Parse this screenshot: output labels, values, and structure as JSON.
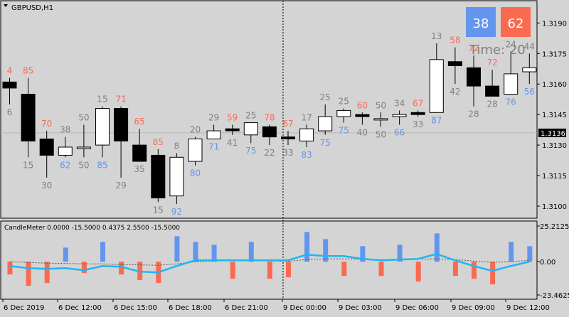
{
  "symbol_title": "GBPUSD,H1",
  "time_label": "Time: 20",
  "buyers_count": "38",
  "sellers_count": "62",
  "current_price": "1.3136",
  "indicator_title": "CandleMeter 0.0000 -15.5000 0.4375 2.5500 -15.5000",
  "colors": {
    "bull_number": "#6495ed",
    "bear_number": "#fa6a50",
    "neutral_number": "#808080",
    "histogram_up": "#6495ed",
    "histogram_down": "#fa6a50",
    "signal_line": "#1fb6f0",
    "background": "#d4d4d4"
  },
  "price_axis": {
    "min": 1.31,
    "max": 1.3195,
    "ticks": [
      "1.3100",
      "1.3115",
      "1.3130",
      "1.3145",
      "1.3160",
      "1.3175",
      "1.3190"
    ]
  },
  "indicator_axis": {
    "min": -23.4625,
    "max": 25.2125,
    "ticks": [
      "25.2125",
      "0.00",
      "-23.4625"
    ]
  },
  "time_labels": [
    "6 Dec 2019",
    "6 Dec 12:00",
    "6 Dec 15:00",
    "6 Dec 18:00",
    "6 Dec 21:00",
    "9 Dec 00:00",
    "9 Dec 03:00",
    "9 Dec 06:00",
    "9 Dec 09:00",
    "9 Dec 12:00"
  ],
  "chart_data": {
    "type": "candlestick",
    "candles": [
      {
        "o": 1.3161,
        "h": 1.3163,
        "l": 1.315,
        "c": 1.3158,
        "top": "4",
        "top_c": "bear",
        "bot": "6",
        "bot_c": "neutral"
      },
      {
        "o": 1.3155,
        "h": 1.3163,
        "l": 1.3124,
        "c": 1.3132,
        "top": "85",
        "top_c": "bear",
        "bot": "15",
        "bot_c": "neutral"
      },
      {
        "o": 1.3133,
        "h": 1.3137,
        "l": 1.3114,
        "c": 1.3125,
        "top": "70",
        "top_c": "bear",
        "bot": "30",
        "bot_c": "neutral"
      },
      {
        "o": 1.3125,
        "h": 1.3134,
        "l": 1.3124,
        "c": 1.3129,
        "top": "38",
        "top_c": "neutral",
        "bot": "62",
        "bot_c": "bull"
      },
      {
        "o": 1.3129,
        "h": 1.314,
        "l": 1.3124,
        "c": 1.3129,
        "top": "50",
        "top_c": "neutral",
        "bot": "50",
        "bot_c": "neutral"
      },
      {
        "o": 1.313,
        "h": 1.3149,
        "l": 1.3124,
        "c": 1.3148,
        "top": "15",
        "top_c": "neutral",
        "bot": "85",
        "bot_c": "bull"
      },
      {
        "o": 1.3148,
        "h": 1.3149,
        "l": 1.3114,
        "c": 1.3132,
        "top": "71",
        "top_c": "bear",
        "bot": "29",
        "bot_c": "neutral"
      },
      {
        "o": 1.313,
        "h": 1.3138,
        "l": 1.3122,
        "c": 1.3122,
        "top": "65",
        "top_c": "bear",
        "bot": "35",
        "bot_c": "neutral"
      },
      {
        "o": 1.3125,
        "h": 1.3128,
        "l": 1.3102,
        "c": 1.3104,
        "top": "85",
        "top_c": "bear",
        "bot": "15",
        "bot_c": "neutral"
      },
      {
        "o": 1.3105,
        "h": 1.3126,
        "l": 1.3101,
        "c": 1.3124,
        "top": "8",
        "top_c": "neutral",
        "bot": "92",
        "bot_c": "bull"
      },
      {
        "o": 1.3122,
        "h": 1.3134,
        "l": 1.312,
        "c": 1.3133,
        "top": "20",
        "top_c": "neutral",
        "bot": "80",
        "bot_c": "bull"
      },
      {
        "o": 1.3133,
        "h": 1.314,
        "l": 1.3133,
        "c": 1.3137,
        "top": "29",
        "top_c": "neutral",
        "bot": "71",
        "bot_c": "bull"
      },
      {
        "o": 1.3138,
        "h": 1.314,
        "l": 1.3135,
        "c": 1.3137,
        "top": "59",
        "top_c": "bear",
        "bot": "41",
        "bot_c": "neutral"
      },
      {
        "o": 1.3135,
        "h": 1.3141,
        "l": 1.3131,
        "c": 1.3141,
        "top": "25",
        "top_c": "neutral",
        "bot": "75",
        "bot_c": "bull"
      },
      {
        "o": 1.3139,
        "h": 1.314,
        "l": 1.313,
        "c": 1.3134,
        "top": "78",
        "top_c": "bear",
        "bot": "22",
        "bot_c": "neutral"
      },
      {
        "o": 1.3134,
        "h": 1.3137,
        "l": 1.313,
        "c": 1.3133,
        "top": "67",
        "top_c": "bear",
        "bot": "33",
        "bot_c": "neutral"
      },
      {
        "o": 1.3132,
        "h": 1.314,
        "l": 1.3129,
        "c": 1.3138,
        "top": "17",
        "top_c": "neutral",
        "bot": "83",
        "bot_c": "bull"
      },
      {
        "o": 1.3137,
        "h": 1.315,
        "l": 1.3135,
        "c": 1.3144,
        "top": "25",
        "top_c": "neutral",
        "bot": "75",
        "bot_c": "bull"
      },
      {
        "o": 1.3144,
        "h": 1.3148,
        "l": 1.3141,
        "c": 1.3147,
        "top": "25",
        "top_c": "neutral",
        "bot": "75",
        "bot_c": "bull"
      },
      {
        "o": 1.3145,
        "h": 1.3146,
        "l": 1.314,
        "c": 1.3144,
        "top": "60",
        "top_c": "bear",
        "bot": "40",
        "bot_c": "neutral"
      },
      {
        "o": 1.3143,
        "h": 1.3146,
        "l": 1.3139,
        "c": 1.3143,
        "top": "50",
        "top_c": "neutral",
        "bot": "50",
        "bot_c": "neutral"
      },
      {
        "o": 1.3144,
        "h": 1.3147,
        "l": 1.314,
        "c": 1.3145,
        "top": "34",
        "top_c": "neutral",
        "bot": "66",
        "bot_c": "bull"
      },
      {
        "o": 1.3146,
        "h": 1.3147,
        "l": 1.3144,
        "c": 1.3145,
        "top": "67",
        "top_c": "bear",
        "bot": "33",
        "bot_c": "neutral"
      },
      {
        "o": 1.3146,
        "h": 1.318,
        "l": 1.3146,
        "c": 1.3172,
        "top": "13",
        "top_c": "neutral",
        "bot": "87",
        "bot_c": "bull"
      },
      {
        "o": 1.3171,
        "h": 1.3178,
        "l": 1.316,
        "c": 1.3169,
        "top": "58",
        "top_c": "bear",
        "bot": "42",
        "bot_c": "neutral"
      },
      {
        "o": 1.3168,
        "h": 1.3174,
        "l": 1.3149,
        "c": 1.3159,
        "top": "72",
        "top_c": "bear",
        "bot": "28",
        "bot_c": "neutral"
      },
      {
        "o": 1.3159,
        "h": 1.3167,
        "l": 1.3154,
        "c": 1.3154,
        "top": "72",
        "top_c": "bear",
        "bot": "28",
        "bot_c": "neutral"
      },
      {
        "o": 1.3155,
        "h": 1.3176,
        "l": 1.3155,
        "c": 1.3165,
        "top": "24",
        "top_c": "neutral",
        "bot": "76",
        "bot_c": "bull"
      },
      {
        "o": 1.3166,
        "h": 1.3175,
        "l": 1.316,
        "c": 1.3168,
        "top": "44",
        "top_c": "neutral",
        "bot": "56",
        "bot_c": "bull"
      }
    ],
    "histogram": [
      -9,
      -17,
      -15,
      10,
      -8,
      14,
      -9,
      -13,
      -15,
      18,
      14,
      12,
      -12,
      14,
      -12,
      -11,
      21,
      16,
      -10,
      11,
      -10,
      12,
      -14,
      20,
      -10,
      -12,
      -16,
      14,
      11
    ],
    "signal_line": [
      -3,
      -4.5,
      -5,
      -4.5,
      -6,
      -3,
      -3.5,
      -7,
      -7.5,
      -3,
      1,
      1,
      1,
      1,
      1,
      1,
      5,
      4,
      4,
      2,
      1,
      1.5,
      2,
      5.5,
      1,
      -3,
      -6.5,
      -3,
      0
    ],
    "dashed_line": [
      0,
      -0.5,
      -1,
      -1.2,
      -1.5,
      -1.5,
      -2,
      -2.2,
      -2.5,
      -1.5,
      0,
      0.5,
      0.8,
      0.8,
      0.5,
      0.3,
      1.5,
      2,
      2,
      1.8,
      1.5,
      1.5,
      1.8,
      2,
      1.5,
      0.5,
      -0.5,
      0,
      1
    ]
  }
}
